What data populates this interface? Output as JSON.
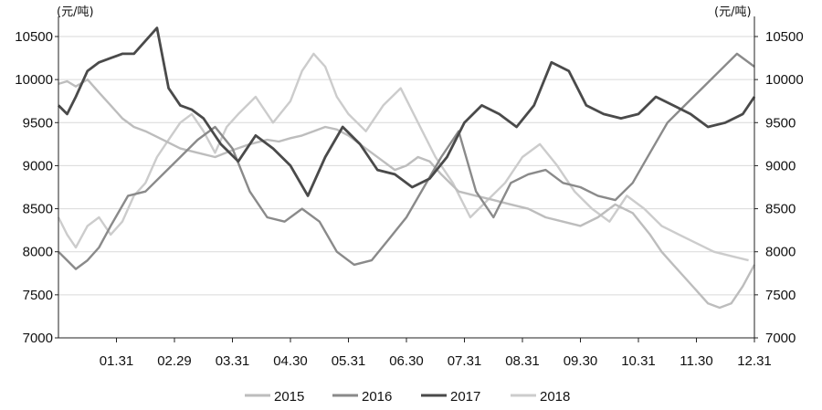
{
  "chart_data": {
    "type": "line",
    "title": "",
    "unit_left": "(元/吨)",
    "unit_right": "(元/吨)",
    "ylim": [
      7000,
      10700
    ],
    "yticks": [
      7000,
      7500,
      8000,
      8500,
      9000,
      9500,
      10000,
      10500
    ],
    "ytick_labels": [
      "7000",
      "7500",
      "8000",
      "8500",
      "9000",
      "9500",
      "10000",
      "10500"
    ],
    "xlim": [
      0,
      12
    ],
    "x_tick_labels": [
      "01.31",
      "02.29",
      "03.31",
      "04.30",
      "05.31",
      "06.30",
      "07.31",
      "08.31",
      "09.30",
      "10.31",
      "11.30",
      "12.31"
    ],
    "grid": "horizontal",
    "legend_position": "bottom",
    "series": [
      {
        "name": "2015",
        "color": "#bdbdbd",
        "x": [
          0,
          0.15,
          0.3,
          0.5,
          0.7,
          0.9,
          1.1,
          1.3,
          1.5,
          1.8,
          2.1,
          2.4,
          2.7,
          3.0,
          3.3,
          3.6,
          3.8,
          4.0,
          4.2,
          4.4,
          4.6,
          4.8,
          5.0,
          5.2,
          5.4,
          5.6,
          5.8,
          6.0,
          6.2,
          6.4,
          6.6,
          6.9,
          7.2,
          7.5,
          7.8,
          8.1,
          8.4,
          8.7,
          9.0,
          9.3,
          9.6,
          9.9,
          10.2,
          10.4,
          10.6,
          10.8,
          11.0,
          11.2,
          11.4,
          11.6,
          11.8,
          12.0
        ],
        "y": [
          9950,
          9980,
          9920,
          10000,
          9850,
          9700,
          9550,
          9450,
          9400,
          9300,
          9200,
          9150,
          9100,
          9180,
          9250,
          9300,
          9280,
          9320,
          9350,
          9400,
          9450,
          9420,
          9350,
          9250,
          9150,
          9050,
          8950,
          9000,
          9100,
          9050,
          8900,
          8700,
          8650,
          8600,
          8550,
          8500,
          8400,
          8350,
          8300,
          8400,
          8550,
          8450,
          8200,
          8000,
          7850,
          7700,
          7550,
          7400,
          7350,
          7400,
          7600,
          7850
        ]
      },
      {
        "name": "2016",
        "color": "#8a8a8a",
        "x": [
          0,
          0.15,
          0.3,
          0.5,
          0.7,
          0.9,
          1.2,
          1.5,
          1.8,
          2.1,
          2.4,
          2.7,
          3.0,
          3.3,
          3.6,
          3.9,
          4.2,
          4.5,
          4.8,
          5.1,
          5.4,
          5.7,
          6.0,
          6.3,
          6.6,
          6.9,
          7.2,
          7.5,
          7.8,
          8.1,
          8.4,
          8.7,
          9.0,
          9.3,
          9.6,
          9.9,
          10.2,
          10.5,
          10.8,
          11.1,
          11.4,
          11.7,
          12.0
        ],
        "y": [
          8000,
          7900,
          7800,
          7900,
          8050,
          8300,
          8650,
          8700,
          8900,
          9100,
          9300,
          9450,
          9200,
          8700,
          8400,
          8350,
          8500,
          8350,
          8000,
          7850,
          7900,
          8150,
          8400,
          8750,
          9100,
          9400,
          8700,
          8400,
          8800,
          8900,
          8950,
          8800,
          8750,
          8650,
          8600,
          8800,
          9150,
          9500,
          9700,
          9900,
          10100,
          10300,
          10150
        ]
      },
      {
        "name": "2017",
        "color": "#4a4a4a",
        "x": [
          0,
          0.15,
          0.3,
          0.5,
          0.7,
          0.9,
          1.1,
          1.3,
          1.5,
          1.7,
          1.9,
          2.1,
          2.3,
          2.5,
          2.8,
          3.1,
          3.4,
          3.7,
          4.0,
          4.3,
          4.6,
          4.9,
          5.2,
          5.5,
          5.8,
          6.1,
          6.4,
          6.7,
          7.0,
          7.3,
          7.6,
          7.9,
          8.2,
          8.5,
          8.8,
          9.1,
          9.4,
          9.7,
          10.0,
          10.3,
          10.6,
          10.9,
          11.2,
          11.5,
          11.8,
          12.0
        ],
        "y": [
          9700,
          9600,
          9800,
          10100,
          10200,
          10250,
          10300,
          10300,
          10450,
          10600,
          9900,
          9700,
          9650,
          9550,
          9250,
          9050,
          9350,
          9200,
          9000,
          8650,
          9100,
          9450,
          9250,
          8950,
          8900,
          8750,
          8850,
          9100,
          9500,
          9700,
          9600,
          9450,
          9700,
          10200,
          10100,
          9700,
          9600,
          9550,
          9600,
          9800,
          9700,
          9600,
          9450,
          9500,
          9600,
          9800
        ]
      },
      {
        "name": "2018",
        "color": "#cccccc",
        "x": [
          0,
          0.15,
          0.3,
          0.5,
          0.7,
          0.9,
          1.1,
          1.3,
          1.5,
          1.7,
          1.9,
          2.1,
          2.3,
          2.5,
          2.7,
          2.9,
          3.1,
          3.4,
          3.7,
          4.0,
          4.2,
          4.4,
          4.6,
          4.8,
          5.0,
          5.3,
          5.6,
          5.9,
          6.2,
          6.5,
          6.8,
          7.1,
          7.4,
          7.7,
          8.0,
          8.3,
          8.6,
          8.9,
          9.2,
          9.5,
          9.8,
          10.1,
          10.4,
          10.7,
          11.0,
          11.3,
          11.6,
          11.9
        ],
        "y": [
          8400,
          8200,
          8050,
          8300,
          8400,
          8200,
          8350,
          8650,
          8800,
          9100,
          9300,
          9500,
          9600,
          9400,
          9150,
          9450,
          9600,
          9800,
          9500,
          9750,
          10100,
          10300,
          10150,
          9800,
          9600,
          9400,
          9700,
          9900,
          9500,
          9100,
          8800,
          8400,
          8600,
          8800,
          9100,
          9250,
          9000,
          8700,
          8500,
          8350,
          8650,
          8500,
          8300,
          8200,
          8100,
          8000,
          7950,
          7900
        ]
      }
    ]
  }
}
